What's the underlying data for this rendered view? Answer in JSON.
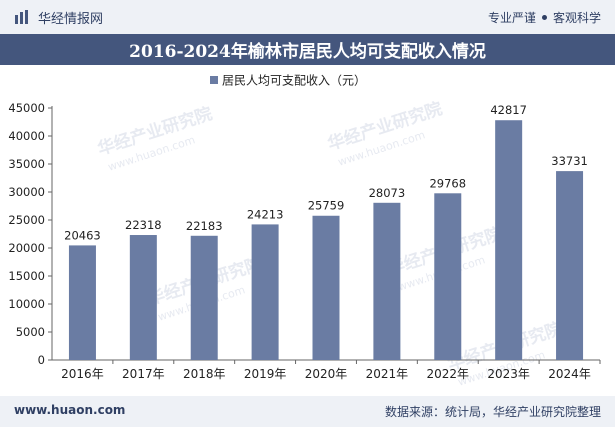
{
  "header": {
    "brand": "华经情报网",
    "tag_left": "专业严谨",
    "tag_right": "客观科学"
  },
  "footer": {
    "site": "www.huaon.com",
    "source": "数据来源：统计局，华经产业研究院整理"
  },
  "watermark": {
    "text": "华经产业研究院",
    "url": "www.huaon.com"
  },
  "colors": {
    "bar": "#6a7ca3",
    "title_bg": "#44567d",
    "axis": "#666666",
    "text": "#222222"
  },
  "chart_data": {
    "type": "bar",
    "title": "2016-2024年榆林市居民人均可支配收入情况",
    "xlabel": "",
    "ylabel": "",
    "categories": [
      "2016年",
      "2017年",
      "2018年",
      "2019年",
      "2020年",
      "2021年",
      "2022年",
      "2023年",
      "2024年"
    ],
    "series": [
      {
        "name": "居民人均可支配收入（元）",
        "values": [
          20463,
          22318,
          22183,
          24213,
          25759,
          28073,
          29768,
          42817,
          33731
        ]
      }
    ],
    "ylim": [
      0,
      45000
    ],
    "yticks": [
      0,
      5000,
      10000,
      15000,
      20000,
      25000,
      30000,
      35000,
      40000,
      45000
    ],
    "legend_position": "top-center",
    "data_labels": true,
    "grid": false
  }
}
